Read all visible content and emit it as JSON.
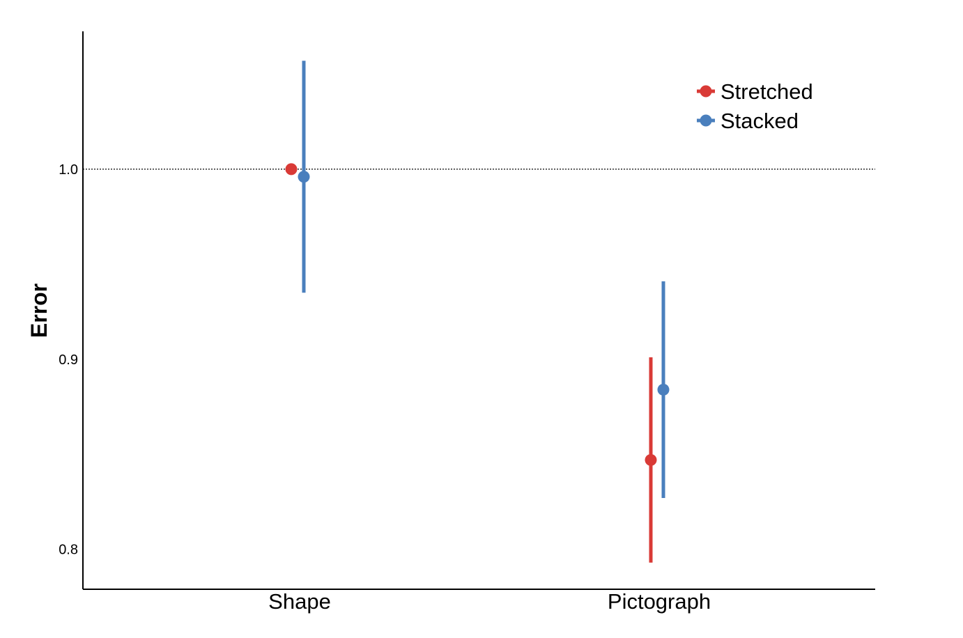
{
  "chart_data": {
    "type": "scatter",
    "ylabel": "Error",
    "xlabel": "",
    "categories": [
      "Shape",
      "Pictograph"
    ],
    "ylim": [
      0.779,
      1.0725
    ],
    "yticks": [
      0.8,
      0.9,
      1.0
    ],
    "ytick_labels": [
      "0.8",
      "0.9",
      "1.0"
    ],
    "reference_line": 1.0,
    "grid": false,
    "legend_position": "top-right",
    "series": [
      {
        "name": "Stretched",
        "color": "#d93a36",
        "points": [
          {
            "category": "Shape",
            "y": 1.0,
            "low": null,
            "high": null
          },
          {
            "category": "Pictograph",
            "y": 0.847,
            "low": 0.793,
            "high": 0.901
          }
        ]
      },
      {
        "name": "Stacked",
        "color": "#4a7fbd",
        "points": [
          {
            "category": "Shape",
            "y": 0.996,
            "low": 0.935,
            "high": 1.057
          },
          {
            "category": "Pictograph",
            "y": 0.884,
            "low": 0.827,
            "high": 0.941
          }
        ]
      }
    ]
  }
}
